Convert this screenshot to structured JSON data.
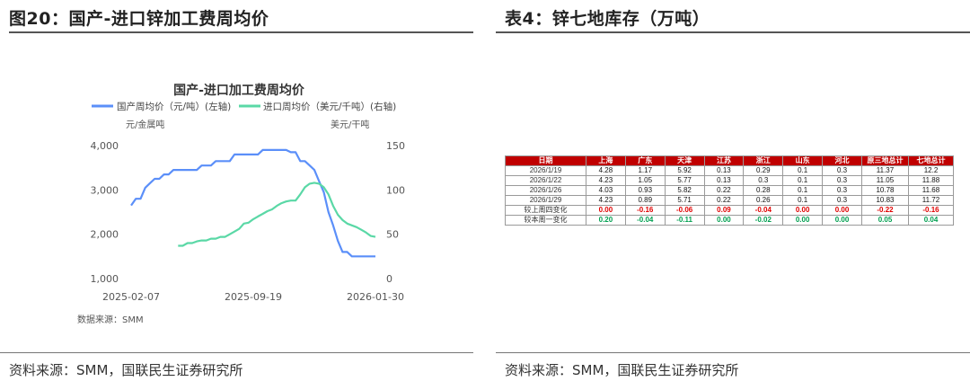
{
  "left_panel": {
    "title": "图20：国产-进口锌加工费周均价",
    "source": "资料来源：SMM，国联民生证券研究所"
  },
  "right_panel": {
    "title": "表4：锌七地库存（万吨）",
    "source": "资料来源：SMM，国联民生证券研究所"
  },
  "chart_data": {
    "type": "line",
    "title": "国产-进口加工费周均价",
    "y_left_unit": "元/金属吨",
    "y_right_unit": "美元/干吨",
    "source_note": "数据来源：SMM",
    "x_ticks": [
      "2025-02-07",
      "2025-09-19",
      "2026-01-30"
    ],
    "ylim_left": [
      1000,
      4000
    ],
    "yticks_left": [
      "1,000",
      "2,000",
      "3,000",
      "4,000"
    ],
    "ylim_right": [
      0,
      150
    ],
    "yticks_right": [
      "0",
      "50",
      "100",
      "150"
    ],
    "grid": false,
    "legend_position": "top",
    "series": [
      {
        "name": "国产周均价（元/吨）(左轴)",
        "axis": "left",
        "color": "#5b8ff9",
        "values": [
          2650,
          2800,
          2800,
          3050,
          3150,
          3250,
          3250,
          3350,
          3350,
          3450,
          3450,
          3450,
          3450,
          3450,
          3450,
          3550,
          3550,
          3550,
          3650,
          3650,
          3650,
          3650,
          3800,
          3800,
          3800,
          3800,
          3800,
          3800,
          3900,
          3900,
          3900,
          3900,
          3900,
          3900,
          3850,
          3850,
          3650,
          3650,
          3550,
          3450,
          3200,
          2950,
          2500,
          2200,
          1850,
          1600,
          1600,
          1500,
          1500,
          1500,
          1500,
          1500,
          1500
        ]
      },
      {
        "name": "进口周均价（美元/千吨）(右轴)",
        "axis": "right",
        "color": "#5ad8a6",
        "values": [
          null,
          null,
          null,
          null,
          null,
          null,
          null,
          null,
          null,
          null,
          37,
          37,
          40,
          40,
          42,
          43,
          43,
          45,
          45,
          47,
          47,
          50,
          53,
          56,
          62,
          63,
          67,
          70,
          73,
          76,
          78,
          82,
          85,
          87,
          88,
          88,
          95,
          103,
          107,
          108,
          107,
          103,
          95,
          82,
          72,
          66,
          62,
          60,
          58,
          55,
          52,
          48,
          47
        ]
      }
    ]
  },
  "table": {
    "headers": [
      "日期",
      "上海",
      "广东",
      "天津",
      "江苏",
      "浙江",
      "山东",
      "河北",
      "原三地总计",
      "七地总计"
    ],
    "rows": [
      {
        "label": "2026/1/19",
        "values": [
          "4.28",
          "1.17",
          "5.92",
          "0.13",
          "0.29",
          "0.1",
          "0.3",
          "11.37",
          "12.2"
        ]
      },
      {
        "label": "2026/1/22",
        "values": [
          "4.23",
          "1.05",
          "5.77",
          "0.13",
          "0.3",
          "0.1",
          "0.3",
          "11.05",
          "11.88"
        ]
      },
      {
        "label": "2026/1/26",
        "values": [
          "4.03",
          "0.93",
          "5.82",
          "0.22",
          "0.28",
          "0.1",
          "0.3",
          "10.78",
          "11.68"
        ]
      },
      {
        "label": "2026/1/29",
        "values": [
          "4.23",
          "0.89",
          "5.71",
          "0.22",
          "0.26",
          "0.1",
          "0.3",
          "10.83",
          "11.72"
        ]
      }
    ],
    "change_rows": [
      {
        "label": "较上周四变化",
        "values": [
          "0.00",
          "-0.16",
          "-0.06",
          "0.09",
          "-0.04",
          "0.00",
          "0.00",
          "-0.22",
          "-0.16"
        ],
        "colors": [
          "pos",
          "pos",
          "pos",
          "pos",
          "pos",
          "pos",
          "pos",
          "pos",
          "pos"
        ]
      },
      {
        "label": "较本周一变化",
        "values": [
          "0.20",
          "-0.04",
          "-0.11",
          "0.00",
          "-0.02",
          "0.00",
          "0.00",
          "0.05",
          "0.04"
        ],
        "colors": [
          "neg",
          "neg",
          "neg",
          "neg",
          "neg",
          "neg",
          "neg",
          "neg",
          "neg"
        ]
      }
    ]
  }
}
